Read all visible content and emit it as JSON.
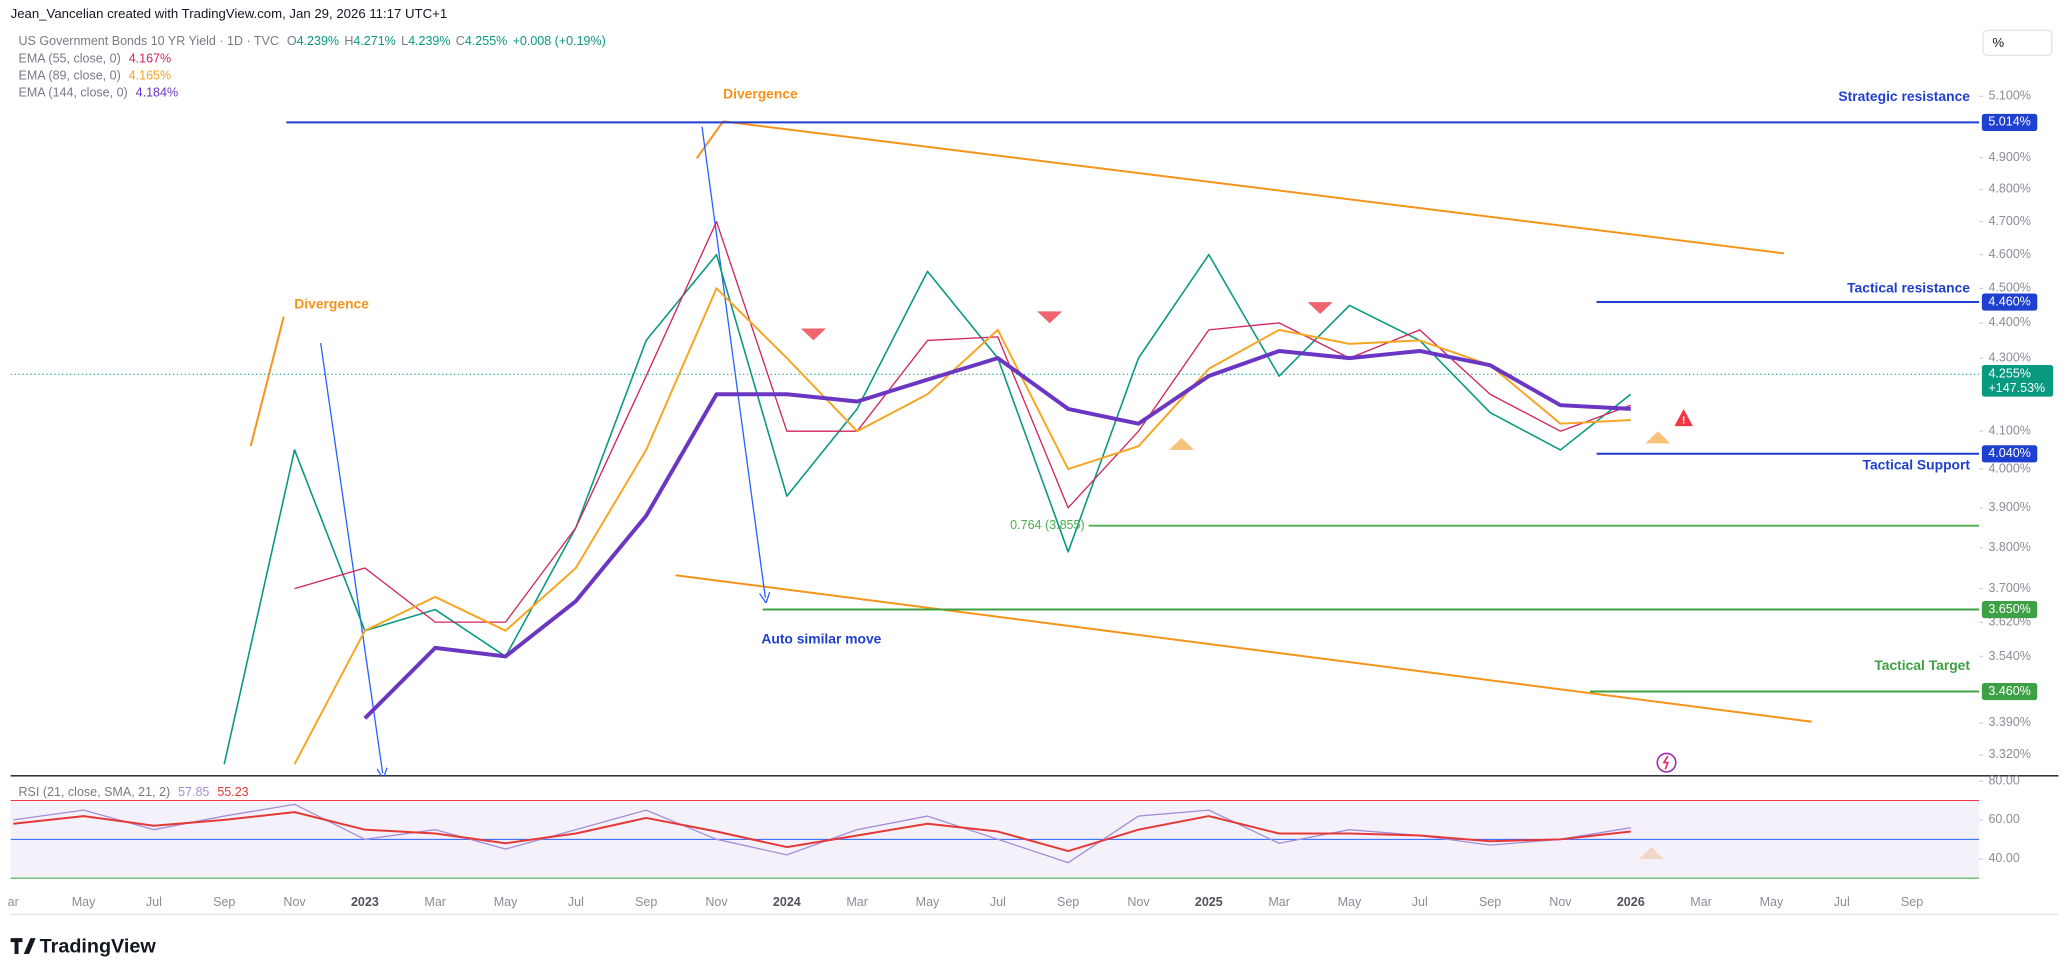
{
  "header": {
    "credit": "Jean_Vancelian created with TradingView.com, Jan 29, 2026 11:17 UTC+1",
    "symbol": "US Government Bonds 10 YR Yield · 1D · TVC",
    "ohlc": [
      {
        "key": "O",
        "label": "4.239%"
      },
      {
        "key": "H",
        "label": "4.271%"
      },
      {
        "key": "L",
        "label": "4.239%"
      },
      {
        "key": "C",
        "label": "4.255%"
      }
    ],
    "change": "+0.008 (+0.19%)",
    "scale_button": "%",
    "brand": "TradingView"
  },
  "annotations": {
    "divergence_left": "Divergence",
    "divergence_top": "Divergence",
    "similar_move": "Auto similar move"
  },
  "chart_data": [
    {
      "type": "line",
      "log": true,
      "grid": false,
      "color": "#089981",
      "categories": [
        "ar",
        "May",
        "Jul",
        "Sep",
        "Nov",
        "2023",
        "Mar",
        "May",
        "Jul",
        "Sep",
        "Nov",
        "2024",
        "Mar",
        "May",
        "Jul",
        "Sep",
        "Nov",
        "2025",
        "Mar",
        "May",
        "Jul",
        "Sep",
        "Nov",
        "2026",
        "Mar",
        "May",
        "Jul",
        "Sep"
      ],
      "values": [
        null,
        null,
        null,
        3.3,
        4.05,
        3.6,
        3.65,
        3.54,
        3.85,
        4.35,
        4.6,
        3.93,
        4.16,
        4.55,
        4.3,
        3.79,
        4.3,
        4.6,
        4.25,
        4.45,
        4.35,
        4.15,
        4.05,
        4.2,
        null,
        null,
        null,
        null
      ],
      "series": [
        {
          "name": "EMA (55, close, 0)",
          "color": "#d0245e",
          "width": 1,
          "last_label": "4.167%",
          "values": [
            null,
            null,
            null,
            null,
            3.7,
            3.75,
            3.62,
            3.62,
            3.85,
            4.25,
            4.7,
            4.1,
            4.1,
            4.35,
            4.36,
            3.9,
            4.1,
            4.38,
            4.4,
            4.3,
            4.38,
            4.2,
            4.1,
            4.17,
            null,
            null,
            null,
            null
          ]
        },
        {
          "name": "EMA (89, close, 0)",
          "color": "#f5a623",
          "width": 1.5,
          "last_label": "4.165%",
          "values": [
            null,
            null,
            null,
            null,
            3.3,
            3.6,
            3.68,
            3.6,
            3.75,
            4.05,
            4.5,
            4.3,
            4.1,
            4.2,
            4.38,
            4.0,
            4.06,
            4.27,
            4.38,
            4.34,
            4.35,
            4.28,
            4.12,
            4.13,
            null,
            null,
            null,
            null
          ]
        },
        {
          "name": "EMA (144, close, 0)",
          "color": "#6a36c2",
          "width": 3,
          "last_label": "4.184%",
          "values": [
            null,
            null,
            null,
            null,
            null,
            3.4,
            3.56,
            3.54,
            3.67,
            3.88,
            4.2,
            4.2,
            4.18,
            4.24,
            4.3,
            4.16,
            4.12,
            4.25,
            4.32,
            4.3,
            4.32,
            4.28,
            4.17,
            4.16,
            null,
            null,
            null,
            null
          ]
        }
      ],
      "ylim": [
        3.275,
        5.384
      ],
      "yticks": [
        {
          "value": 5.1,
          "label": "5.100%"
        },
        {
          "value": 4.9,
          "label": "4.900%"
        },
        {
          "value": 4.8,
          "label": "4.800%"
        },
        {
          "value": 4.7,
          "label": "4.700%"
        },
        {
          "value": 4.6,
          "label": "4.600%"
        },
        {
          "value": 4.5,
          "label": "4.500%"
        },
        {
          "value": 4.4,
          "label": "4.400%"
        },
        {
          "value": 4.3,
          "label": "4.300%"
        },
        {
          "value": 4.1,
          "label": "4.100%"
        },
        {
          "value": 4.0,
          "label": "4.000%"
        },
        {
          "value": 3.9,
          "label": "3.900%"
        },
        {
          "value": 3.8,
          "label": "3.800%"
        },
        {
          "value": 3.7,
          "label": "3.700%"
        },
        {
          "value": 3.62,
          "label": "3.620%"
        },
        {
          "value": 3.54,
          "label": "3.540%"
        },
        {
          "value": 3.39,
          "label": "3.390%"
        },
        {
          "value": 3.32,
          "label": "3.320%"
        }
      ],
      "levels": [
        {
          "value": 5.014,
          "label": "5.014%",
          "text": "Strategic resistance",
          "color": "#1f3fcf"
        },
        {
          "value": 4.46,
          "label": "4.460%",
          "text": "Tactical resistance",
          "color": "#1f3fcf"
        },
        {
          "value": 4.04,
          "label": "4.040%",
          "text": "Tactical Support",
          "color": "#1f3fcf"
        },
        {
          "value": 3.855,
          "label": "0.764 (3.855)",
          "color": "#4caf50"
        },
        {
          "value": 3.65,
          "label": "3.650%",
          "color": "#3ea044"
        },
        {
          "value": 3.46,
          "label": "3.460%",
          "text": "Tactical Target",
          "color": "#3ea044"
        }
      ],
      "last": {
        "value": 4.255,
        "label": "4.255%",
        "change": "+147.53%",
        "color": "#089981"
      }
    },
    {
      "type": "line",
      "title": "RSI (21, close, SMA, 21, 2)",
      "series": [
        {
          "color": "#a48fd6",
          "width": 1,
          "last_label": "57.85",
          "values": [
            60,
            65,
            55,
            62,
            68,
            50,
            55,
            45,
            55,
            65,
            50,
            42,
            55,
            62,
            50,
            38,
            62,
            65,
            48,
            55,
            52,
            47,
            50,
            56,
            null,
            null,
            null,
            null
          ]
        },
        {
          "color": "#e53935",
          "width": 1.5,
          "last_label": "55.23",
          "values": [
            58,
            62,
            57,
            60,
            64,
            55,
            53,
            48,
            53,
            61,
            54,
            46,
            52,
            58,
            54,
            44,
            55,
            62,
            53,
            53,
            52,
            49,
            50,
            54,
            null,
            null,
            null,
            null
          ]
        }
      ],
      "ylim": [
        27,
        82
      ],
      "yticks": [
        {
          "value": 80,
          "label": "80.00"
        },
        {
          "value": 60,
          "label": "60.00"
        },
        {
          "value": 40,
          "label": "40.00"
        }
      ],
      "bands": [
        {
          "value": 70,
          "color": "#f23645"
        },
        {
          "value": 50,
          "color": "#2962ff"
        },
        {
          "value": 30,
          "color": "#4caf50"
        }
      ],
      "band_fill": "#ede7f6"
    }
  ]
}
